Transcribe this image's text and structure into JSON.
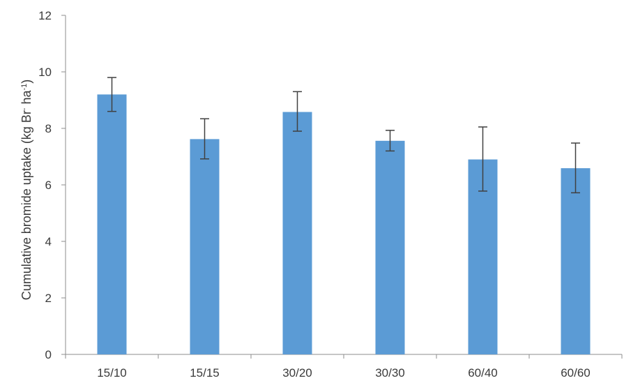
{
  "chart_data": {
    "type": "bar",
    "categories": [
      "15/10",
      "15/15",
      "30/20",
      "30/30",
      "60/40",
      "60/60"
    ],
    "values": [
      9.2,
      7.62,
      8.58,
      7.56,
      6.9,
      6.59
    ],
    "error_low": [
      8.6,
      6.92,
      7.9,
      7.2,
      5.78,
      5.72
    ],
    "error_high": [
      9.8,
      8.34,
      9.3,
      7.93,
      8.05,
      7.48
    ],
    "yticks": [
      0,
      2,
      4,
      6,
      8,
      10,
      12
    ],
    "ylim": [
      0,
      12
    ],
    "ylabel": {
      "main": "Cumulative  bromide uptake (kg Br",
      "sup1": "-",
      "mid": " ha",
      "sup2": "-1",
      "end": ")"
    },
    "bar_color": "#5b9bd5",
    "error_color": "#404040",
    "grid": false,
    "legend": "none"
  }
}
